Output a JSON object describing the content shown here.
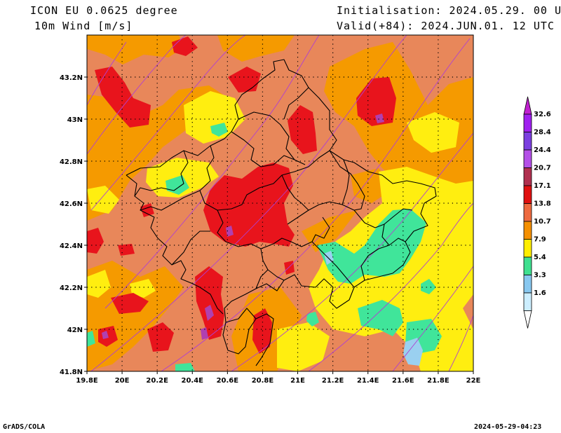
{
  "header": {
    "model_line": "ICON EU 0.0625 degree",
    "field_line": "10m Wind [m/s]",
    "init_line": "Initialisation: 2024.05.29. 00 UTC",
    "valid_line": "Valid(+84): 2024.JUN.01. 12 UTC"
  },
  "footer": {
    "left": "GrADS/COLA",
    "right": "2024-05-29-04:23"
  },
  "map": {
    "lon_range": [
      19.8,
      22.0
    ],
    "lat_range": [
      41.8,
      43.4
    ],
    "lon_ticks": [
      {
        "value": 19.8,
        "label": "19.8E"
      },
      {
        "value": 20.0,
        "label": "20E"
      },
      {
        "value": 20.2,
        "label": "20.2E"
      },
      {
        "value": 20.4,
        "label": "20.4E"
      },
      {
        "value": 20.6,
        "label": "20.6E"
      },
      {
        "value": 20.8,
        "label": "20.8E"
      },
      {
        "value": 21.0,
        "label": "21E"
      },
      {
        "value": 21.2,
        "label": "21.2E"
      },
      {
        "value": 21.4,
        "label": "21.4E"
      },
      {
        "value": 21.6,
        "label": "21.6E"
      },
      {
        "value": 21.8,
        "label": "21.8E"
      },
      {
        "value": 22.0,
        "label": "22E"
      }
    ],
    "lat_ticks": [
      {
        "value": 41.8,
        "label": "41.8N"
      },
      {
        "value": 42.0,
        "label": "42N"
      },
      {
        "value": 42.2,
        "label": "42.2N"
      },
      {
        "value": 42.4,
        "label": "42.4N"
      },
      {
        "value": 42.6,
        "label": "42.6N"
      },
      {
        "value": 42.8,
        "label": "42.8N"
      },
      {
        "value": 43.0,
        "label": "43N"
      },
      {
        "value": 43.2,
        "label": "43.2N"
      }
    ],
    "grid": "dotted",
    "base_color": "#e8875a"
  },
  "legend": {
    "levels": [
      "32.6",
      "28.4",
      "24.4",
      "20.7",
      "17.1",
      "13.8",
      "10.7",
      "7.9",
      "5.4",
      "3.3",
      "1.6"
    ],
    "colors": [
      "#a020f0",
      "#7b3fe0",
      "#b44fe8",
      "#b0304f",
      "#e01010",
      "#ee6a40",
      "#f59000",
      "#ffee00",
      "#3fe090",
      "#88c8f0",
      "#cceeff"
    ],
    "cap_top_color": "#c020d0",
    "cap_bottom_color": "#ffffff"
  },
  "palette": {
    "red": "#e8141c",
    "orange_dark": "#ef6a3c",
    "orange": "#f59a00",
    "yellow": "#ffee10",
    "green": "#40e59a",
    "blue": "#9ad0f0",
    "magenta": "#b040b0",
    "border": "#000000",
    "streamline": "#b040d0"
  }
}
